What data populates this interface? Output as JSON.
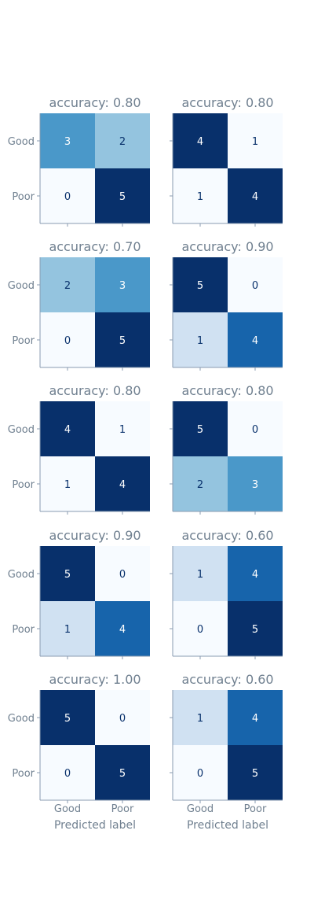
{
  "chart_data": {
    "type": "heatmap",
    "colormap": "Blues",
    "text_color": "#708090",
    "cell_text_light": "#ffffff",
    "cell_text_dark": "#08306b",
    "class_labels": [
      "Good",
      "Poor"
    ],
    "xlabel": "Predicted label",
    "grid": false,
    "panels": [
      {
        "title": "accuracy: 0.80",
        "matrix": [
          [
            3,
            2
          ],
          [
            0,
            5
          ]
        ]
      },
      {
        "title": "accuracy: 0.80",
        "matrix": [
          [
            4,
            1
          ],
          [
            1,
            4
          ]
        ]
      },
      {
        "title": "accuracy: 0.70",
        "matrix": [
          [
            2,
            3
          ],
          [
            0,
            5
          ]
        ]
      },
      {
        "title": "accuracy: 0.90",
        "matrix": [
          [
            5,
            0
          ],
          [
            1,
            4
          ]
        ]
      },
      {
        "title": "accuracy: 0.80",
        "matrix": [
          [
            4,
            1
          ],
          [
            1,
            4
          ]
        ]
      },
      {
        "title": "accuracy: 0.80",
        "matrix": [
          [
            5,
            0
          ],
          [
            2,
            3
          ]
        ]
      },
      {
        "title": "accuracy: 0.90",
        "matrix": [
          [
            5,
            0
          ],
          [
            1,
            4
          ]
        ]
      },
      {
        "title": "accuracy: 0.60",
        "matrix": [
          [
            1,
            4
          ],
          [
            0,
            5
          ]
        ]
      },
      {
        "title": "accuracy: 1.00",
        "matrix": [
          [
            5,
            0
          ],
          [
            0,
            5
          ]
        ]
      },
      {
        "title": "accuracy: 0.60",
        "matrix": [
          [
            1,
            4
          ],
          [
            0,
            5
          ]
        ]
      }
    ]
  }
}
